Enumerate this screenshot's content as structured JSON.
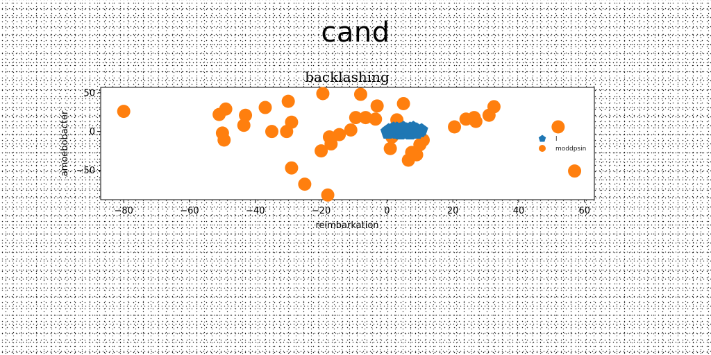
{
  "figure_title": "cand",
  "chart_data": {
    "type": "scatter",
    "title": "backlashing",
    "xlabel": "reimbarkation",
    "ylabel": "amoebobacter",
    "xlim": [
      -87,
      63
    ],
    "ylim": [
      -88,
      57
    ],
    "xticks": [
      -80,
      -60,
      -40,
      -20,
      0,
      20,
      40,
      60
    ],
    "yticks": [
      -50,
      0,
      50
    ],
    "grid": false,
    "legend_position": "center-right",
    "series": [
      {
        "name": "l",
        "color": "#1f77b4",
        "marker": "pentagon",
        "points": [
          [
            0,
            0
          ],
          [
            0.5,
            2
          ],
          [
            1,
            -1
          ],
          [
            1.5,
            3
          ],
          [
            2,
            0
          ],
          [
            2.5,
            2
          ],
          [
            3,
            -2
          ],
          [
            3.5,
            1
          ],
          [
            4,
            3
          ],
          [
            4.5,
            0
          ],
          [
            5,
            2
          ],
          [
            5.5,
            -1
          ],
          [
            6,
            3
          ],
          [
            6.5,
            1
          ],
          [
            7,
            4
          ],
          [
            7.5,
            0
          ],
          [
            8,
            2
          ],
          [
            8.5,
            -1
          ],
          [
            9,
            3
          ],
          [
            9.5,
            1
          ],
          [
            10,
            0
          ],
          [
            2,
            4
          ],
          [
            4,
            -3
          ],
          [
            6,
            -2
          ],
          [
            8,
            5
          ],
          [
            5,
            5
          ],
          [
            3,
            4
          ],
          [
            7,
            -3
          ],
          [
            9,
            -2
          ],
          [
            1,
            1
          ],
          [
            10.5,
            2
          ],
          [
            0.2,
            -2
          ]
        ]
      },
      {
        "name": "moddpsin",
        "color": "#ff7f0e",
        "marker": "circle",
        "points": [
          [
            -80,
            26
          ],
          [
            -51,
            22
          ],
          [
            -49,
            29
          ],
          [
            -50,
            -2
          ],
          [
            -49.5,
            -11
          ],
          [
            -43,
            21
          ],
          [
            -43.5,
            8
          ],
          [
            -37,
            31
          ],
          [
            -35,
            0
          ],
          [
            -30,
            39
          ],
          [
            -29,
            12
          ],
          [
            -30.5,
            0
          ],
          [
            -29,
            -47
          ],
          [
            -25,
            -68
          ],
          [
            -19.5,
            49
          ],
          [
            -20,
            -25
          ],
          [
            -17.5,
            -7
          ],
          [
            -17,
            -16
          ],
          [
            -14.5,
            -4
          ],
          [
            -11,
            2
          ],
          [
            -18,
            -82
          ],
          [
            -9.5,
            18
          ],
          [
            -8,
            48
          ],
          [
            -6.5,
            18
          ],
          [
            -3,
            33
          ],
          [
            -3.5,
            16
          ],
          [
            1,
            -22
          ],
          [
            1.5,
            -7
          ],
          [
            3,
            15
          ],
          [
            5,
            36
          ],
          [
            6.5,
            -37
          ],
          [
            7.5,
            -27
          ],
          [
            9,
            -30
          ],
          [
            10,
            -17
          ],
          [
            11,
            -11
          ],
          [
            20.5,
            6
          ],
          [
            24,
            16
          ],
          [
            26.5,
            18
          ],
          [
            27,
            13
          ],
          [
            31,
            21
          ],
          [
            32.5,
            32
          ],
          [
            52,
            6
          ],
          [
            57,
            -51
          ]
        ]
      }
    ]
  }
}
